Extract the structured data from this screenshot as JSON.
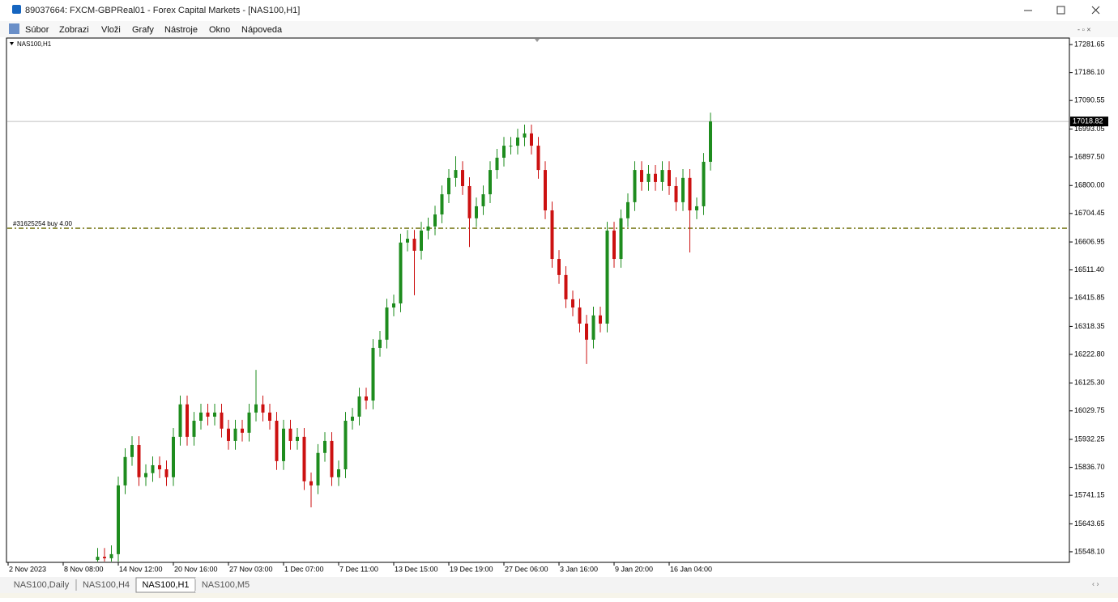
{
  "window": {
    "title": "89037664: FXCM-GBPReal01 - Forex Capital Markets - [NAS100,H1]"
  },
  "menu": [
    "Súbor",
    "Zobrazi",
    "Vloži",
    "Grafy",
    "Nástroje",
    "Okno",
    "Nápoveda"
  ],
  "chart_data": {
    "type": "candlestick",
    "title": "NAS100,H1",
    "up_color": "#1e8c1e",
    "down_color": "#cc1111",
    "grid": false,
    "categories": [
      "2 Nov 2023",
      null,
      null,
      null,
      null,
      null,
      null,
      null,
      "8 Nov 08:00",
      null,
      null,
      null,
      null,
      null,
      null,
      null,
      "14 Nov 12:00",
      null,
      null,
      null,
      null,
      null,
      null,
      null,
      "20 Nov 16:00",
      null,
      null,
      null,
      null,
      null,
      null,
      null,
      "27 Nov 03:00",
      null,
      null,
      null,
      null,
      null,
      null,
      null,
      "1 Dec 07:00",
      null,
      null,
      null,
      null,
      null,
      null,
      null,
      "7 Dec 11:00",
      null,
      null,
      null,
      null,
      null,
      null,
      null,
      "13 Dec 15:00",
      null,
      null,
      null,
      null,
      null,
      null,
      null,
      "19 Dec 19:00",
      null,
      null,
      null,
      null,
      null,
      null,
      null,
      "27 Dec 06:00",
      null,
      null,
      null,
      null,
      null,
      null,
      null,
      "3 Jan 16:00",
      null,
      null,
      null,
      null,
      null,
      null,
      null,
      "9 Jan 20:00",
      null,
      null,
      null,
      null,
      null,
      null,
      null,
      "16 Jan 04:00",
      null,
      null,
      null,
      null,
      null,
      null
    ],
    "open": [
      null,
      null,
      null,
      null,
      null,
      null,
      null,
      null,
      null,
      null,
      null,
      null,
      null,
      15520,
      15531,
      15526,
      15540,
      15775,
      15872,
      15913,
      15803,
      15817,
      15844,
      15830,
      15803,
      15941,
      16052,
      15941,
      15996,
      16024,
      16010,
      16024,
      15969,
      15927,
      15969,
      15955,
      16024,
      16052,
      16024,
      15996,
      15858,
      15969,
      15927,
      15941,
      15789,
      15775,
      15886,
      15927,
      15803,
      15830,
      15996,
      16010,
      16079,
      16065,
      16245,
      16273,
      16383,
      16397,
      16605,
      16618,
      16577,
      16646,
      16660,
      16701,
      16770,
      16826,
      16853,
      16798,
      16688,
      16729,
      16770,
      16853,
      16895,
      16936,
      16936,
      16964,
      16978,
      16936,
      16853,
      16715,
      16549,
      16494,
      16411,
      16383,
      16328,
      16273,
      16356,
      16328,
      16646,
      16549,
      16688,
      16743,
      16853,
      16812,
      16840,
      16812,
      16853,
      16798,
      16743,
      16826,
      16715,
      16729,
      16881
    ],
    "high": [
      null,
      null,
      null,
      null,
      null,
      null,
      null,
      null,
      null,
      null,
      null,
      null,
      null,
      15561,
      15561,
      15570,
      15805,
      15902,
      15943,
      15943,
      15847,
      15874,
      15874,
      15860,
      15971,
      16082,
      16082,
      16026,
      16054,
      16054,
      16054,
      16054,
      15999,
      15999,
      15999,
      16054,
      16170,
      16082,
      16054,
      16026,
      15999,
      15999,
      15971,
      15971,
      15819,
      15916,
      15957,
      15957,
      15860,
      16026,
      16040,
      16109,
      16109,
      16275,
      16303,
      16413,
      16427,
      16635,
      16648,
      16648,
      16676,
      16690,
      16731,
      16800,
      16856,
      16900,
      16883,
      16828,
      16759,
      16800,
      16883,
      16925,
      16966,
      16966,
      16994,
      17008,
      17008,
      16966,
      16883,
      16745,
      16579,
      16524,
      16441,
      16413,
      16358,
      16386,
      16386,
      16676,
      16676,
      16718,
      16773,
      16883,
      16883,
      16870,
      16870,
      16883,
      16883,
      16828,
      16856,
      16856,
      16759,
      16911,
      17049
    ],
    "low": [
      null,
      null,
      null,
      null,
      null,
      null,
      null,
      null,
      null,
      null,
      null,
      null,
      null,
      15490,
      15496,
      15496,
      15510,
      15745,
      15842,
      15773,
      15773,
      15787,
      15800,
      15773,
      15773,
      15911,
      15911,
      15911,
      15966,
      15980,
      15980,
      15939,
      15897,
      15897,
      15925,
      15925,
      15994,
      15994,
      15966,
      15828,
      15828,
      15897,
      15897,
      15759,
      15700,
      15745,
      15856,
      15773,
      15773,
      15800,
      15966,
      15980,
      16035,
      16035,
      16215,
      16243,
      16353,
      16367,
      16575,
      16425,
      16547,
      16616,
      16630,
      16671,
      16740,
      16796,
      16768,
      16590,
      16658,
      16699,
      16740,
      16823,
      16865,
      16906,
      16906,
      16934,
      16906,
      16823,
      16685,
      16519,
      16464,
      16381,
      16353,
      16298,
      16190,
      16243,
      16298,
      16298,
      16519,
      16519,
      16658,
      16713,
      16782,
      16782,
      16782,
      16782,
      16768,
      16713,
      16713,
      16571,
      16685,
      16699,
      16851
    ],
    "close": [
      null,
      null,
      null,
      null,
      null,
      null,
      null,
      null,
      null,
      null,
      null,
      null,
      null,
      15531,
      15526,
      15540,
      15775,
      15872,
      15913,
      15803,
      15817,
      15844,
      15830,
      15803,
      15941,
      16052,
      15941,
      15996,
      16024,
      16010,
      16024,
      15969,
      15927,
      15969,
      15955,
      16024,
      16052,
      16024,
      15996,
      15858,
      15969,
      15927,
      15941,
      15789,
      15775,
      15886,
      15927,
      15803,
      15830,
      15996,
      16010,
      16079,
      16065,
      16245,
      16273,
      16383,
      16397,
      16605,
      16618,
      16577,
      16646,
      16660,
      16701,
      16770,
      16826,
      16853,
      16798,
      16688,
      16729,
      16770,
      16853,
      16895,
      16936,
      16936,
      16964,
      16978,
      16936,
      16853,
      16715,
      16549,
      16494,
      16411,
      16383,
      16328,
      16273,
      16356,
      16328,
      16646,
      16549,
      16688,
      16743,
      16853,
      16812,
      16840,
      16812,
      16853,
      16798,
      16743,
      16826,
      16715,
      16729,
      16881,
      17019
    ],
    "ylim": [
      15512,
      17304
    ],
    "yticks": [
      17281.65,
      {
        "value": 17186.1,
        "label": "17186.10"
      },
      17090.55,
      16993.05,
      {
        "value": 16897.5,
        "label": "16897.50"
      },
      {
        "value": 16800,
        "label": "16800.00"
      },
      16704.45,
      16606.95,
      {
        "value": 16511.4,
        "label": "16511.40"
      },
      16415.85,
      16318.35,
      {
        "value": 16222.8,
        "label": "16222.80"
      },
      {
        "value": 16125.3,
        "label": "16125.30"
      },
      16029.75,
      15932.25,
      {
        "value": 15836.7,
        "label": "15836.70"
      },
      15741.15,
      15643.65,
      {
        "value": 15548.1,
        "label": "15548.10"
      }
    ],
    "current_price": 17018.82,
    "order_line": {
      "price": 16654,
      "label": "#31625254 buy 4.00",
      "color": "#6b6b00"
    }
  },
  "tabs": [
    "NAS100,Daily",
    "NAS100,H4",
    "NAS100,H1",
    "NAS100,M5"
  ],
  "active_tab": 2
}
